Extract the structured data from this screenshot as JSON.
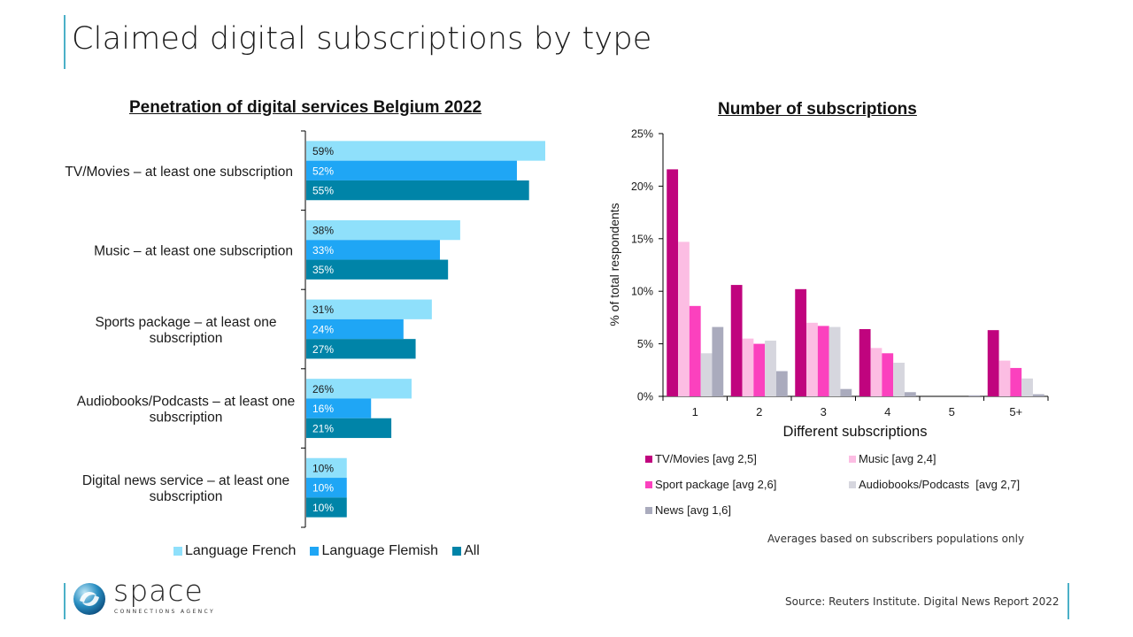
{
  "page": {
    "title": "Claimed digital subscriptions by type",
    "avg_note": "Averages based on subscribers populations only",
    "source": "Source: Reuters Institute. Digital News Report 2022",
    "logo": {
      "word": "space",
      "tagline": "CONNECTIONS AGENCY",
      "icon": "globe-swirl-icon"
    },
    "colors": {
      "accent": "#4bb0c8"
    }
  },
  "chart_data": [
    {
      "type": "bar",
      "orientation": "horizontal",
      "title": "Penetration of digital services Belgium 2022",
      "xlabel": "",
      "ylabel": "",
      "xlim": [
        0,
        100
      ],
      "grid": false,
      "legend_position": "bottom",
      "categories": [
        "TV/Movies – at least one subscription",
        "Music – at least one subscription",
        "Sports package – at least one subscription",
        "Audiobooks/Podcasts – at least one subscription",
        "Digital news service – at least one subscription"
      ],
      "category_lines": [
        [
          "TV/Movies – at least one subscription"
        ],
        [
          "Music – at least one subscription"
        ],
        [
          "Sports package – at least one",
          "subscription"
        ],
        [
          "Audiobooks/Podcasts – at least one",
          "subscription"
        ],
        [
          "Digital news service – at least one",
          "subscription"
        ]
      ],
      "series": [
        {
          "name": "Language French",
          "color": "#8fe0fb",
          "label_color": "#1a1a1a",
          "values": [
            59,
            38,
            31,
            26,
            10
          ]
        },
        {
          "name": "Language Flemish",
          "color": "#1fa6f5",
          "label_color": "#ffffff",
          "values": [
            52,
            33,
            24,
            16,
            10
          ]
        },
        {
          "name": "All",
          "color": "#0084a8",
          "label_color": "#ffffff",
          "values": [
            55,
            35,
            27,
            21,
            10
          ]
        }
      ],
      "value_suffix": "%"
    },
    {
      "type": "bar",
      "orientation": "vertical",
      "title": "Number of subscriptions",
      "xlabel": "Different subscriptions",
      "ylabel": "% of total respondents",
      "ylim": [
        0,
        25
      ],
      "yticks": [
        "0%",
        "5%",
        "10%",
        "15%",
        "20%",
        "25%"
      ],
      "grid": false,
      "legend_position": "bottom",
      "categories": [
        "1",
        "2",
        "3",
        "4",
        "5",
        "5+"
      ],
      "series": [
        {
          "name": "TV/Movies [avg 2,5]",
          "color": "#c0047e",
          "values": [
            21.6,
            10.6,
            10.2,
            6.4,
            0,
            6.3
          ]
        },
        {
          "name": "Music [avg 2,4]",
          "color": "#fcbde3",
          "values": [
            14.7,
            5.5,
            7.0,
            4.6,
            0,
            3.4
          ]
        },
        {
          "name": "Sport package [avg 2,6]",
          "color": "#fb41be",
          "values": [
            8.6,
            5.0,
            6.7,
            4.1,
            0,
            2.7
          ]
        },
        {
          "name": "Audiobooks/Podcasts  [avg 2,7]",
          "color": "#d6d6de",
          "values": [
            4.1,
            5.3,
            6.6,
            3.2,
            0,
            1.7
          ]
        },
        {
          "name": "News [avg 1,6]",
          "color": "#aaabbd",
          "values": [
            6.6,
            2.4,
            0.7,
            0.4,
            0.1,
            0.2
          ]
        }
      ]
    }
  ]
}
